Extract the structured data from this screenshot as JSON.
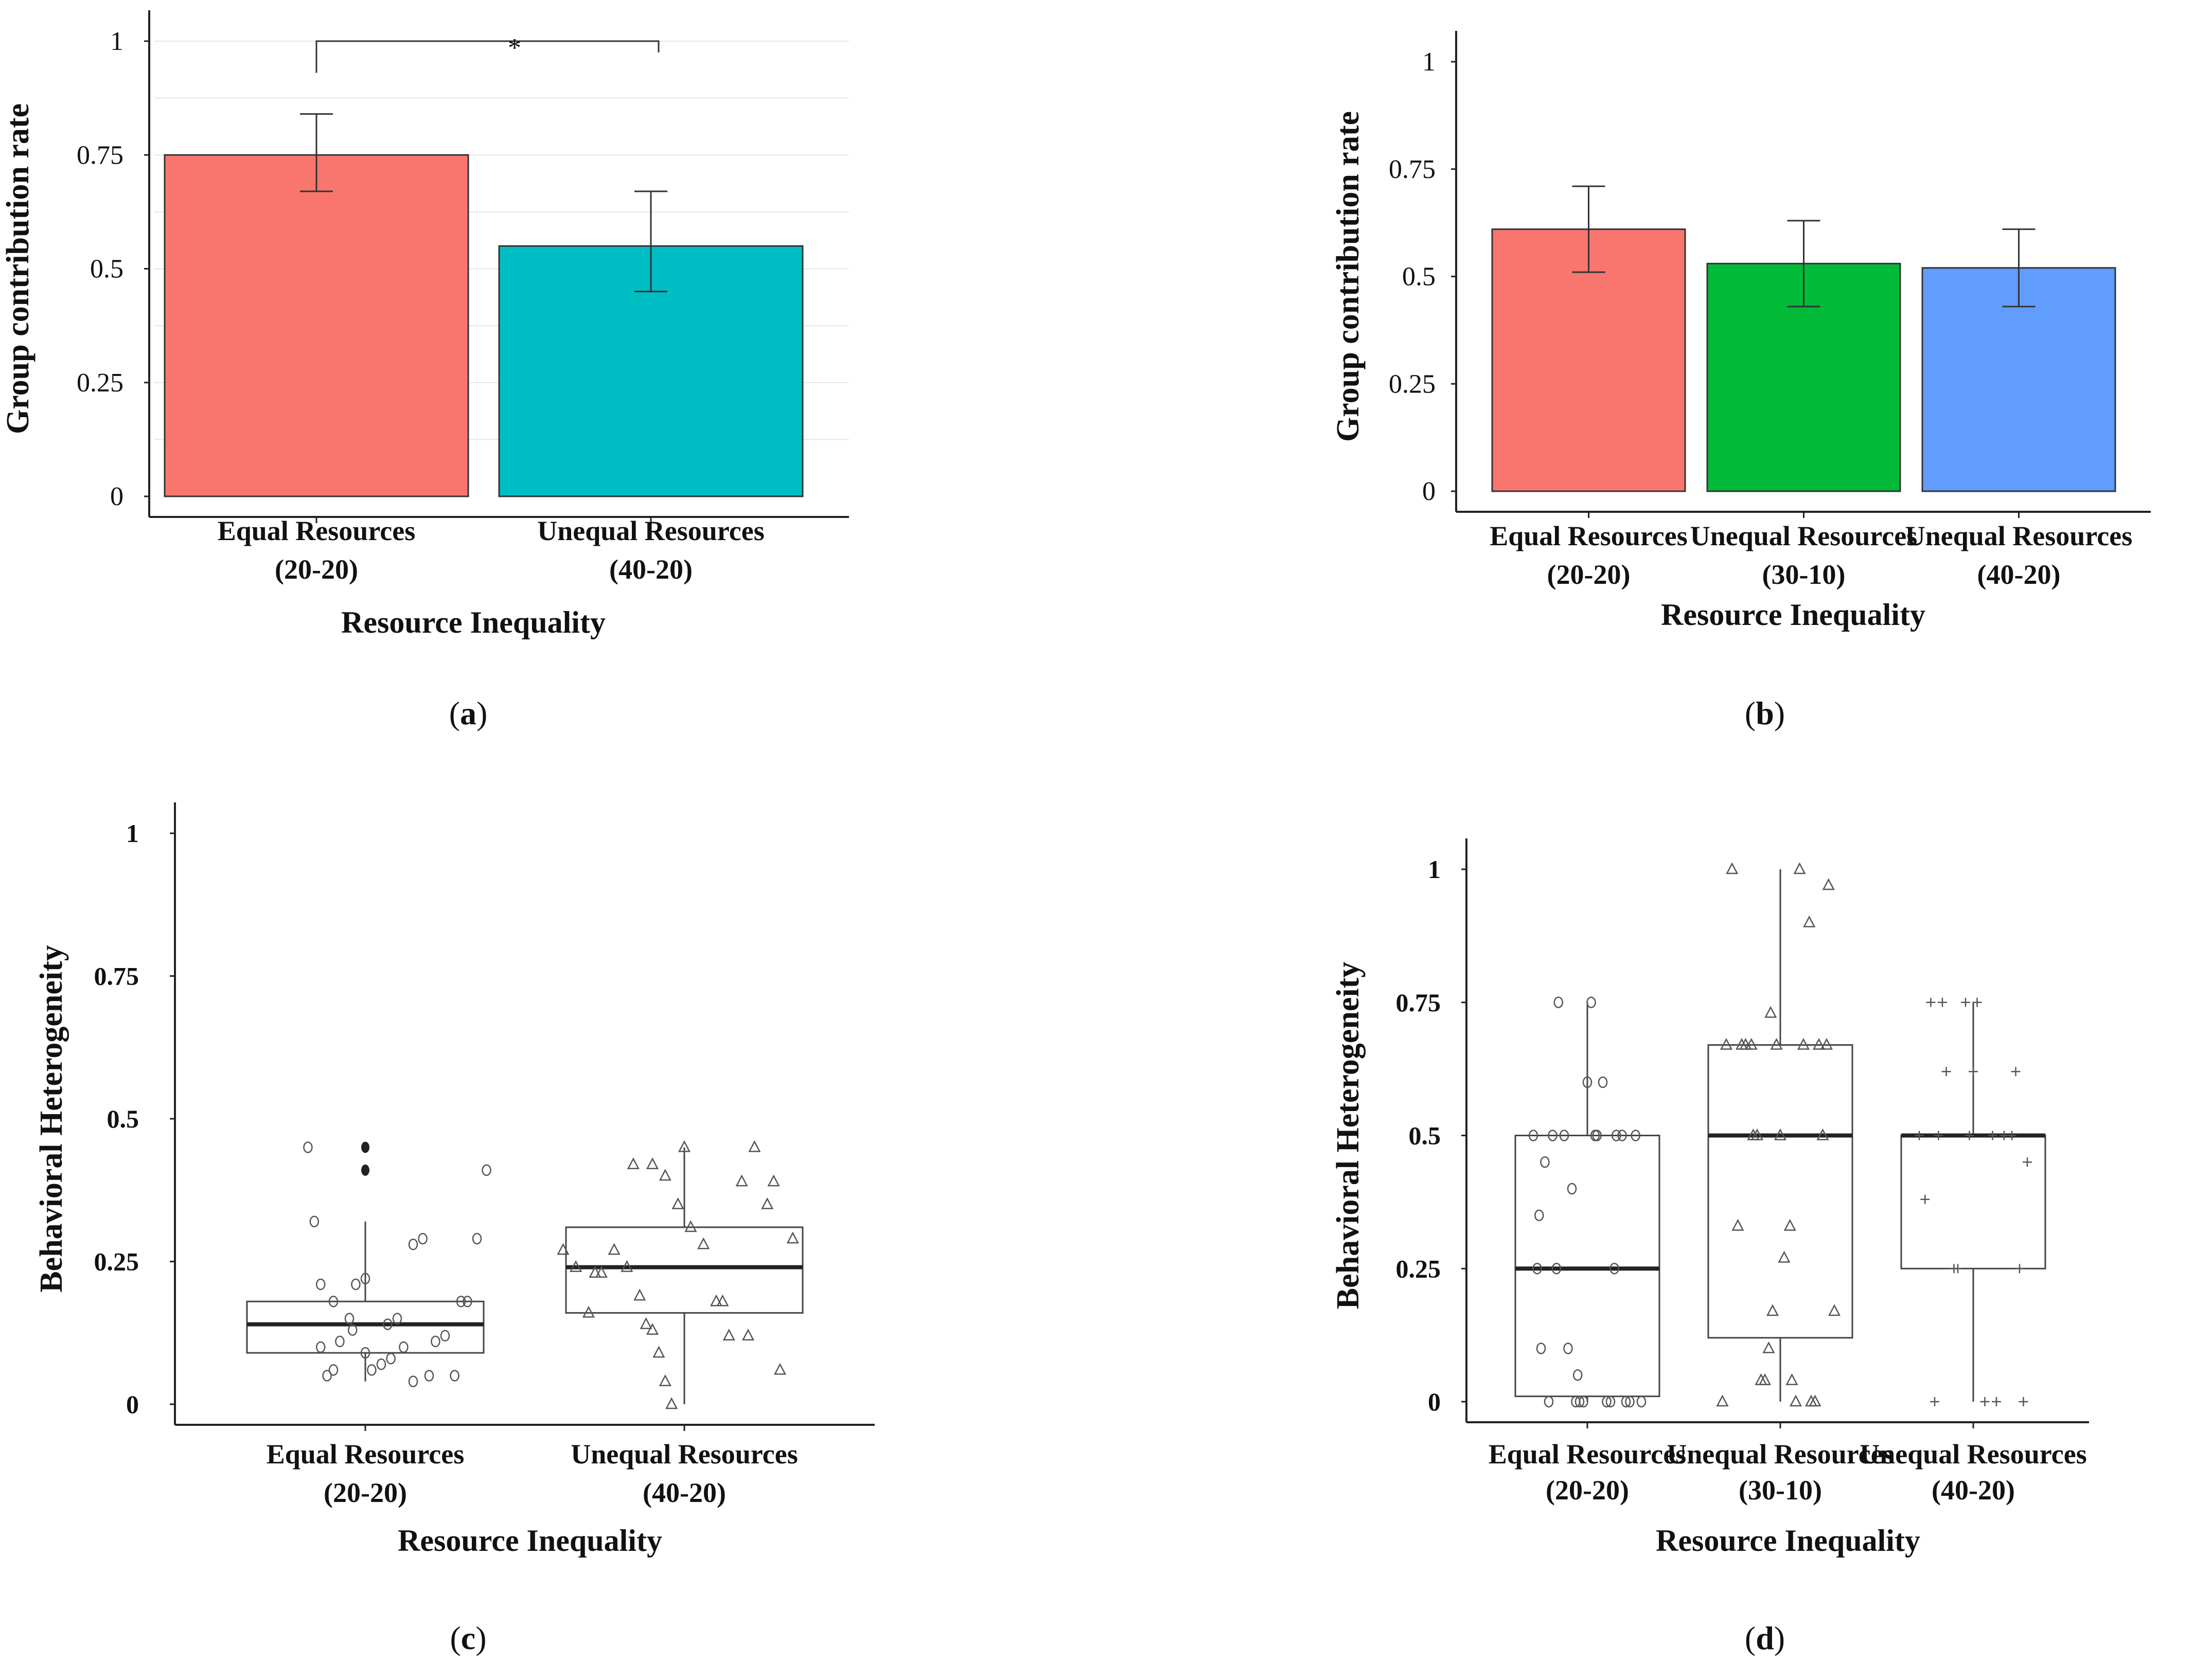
{
  "chart_data": [
    {
      "id": "a",
      "type": "bar",
      "caption": "a",
      "categories": [
        [
          "Equal Resources",
          "(20-20)"
        ],
        [
          "Unequal Resources",
          "(40-20)"
        ]
      ],
      "values": [
        0.75,
        0.55
      ],
      "error_low": [
        0.67,
        0.45
      ],
      "error_high": [
        0.84,
        0.67
      ],
      "colors": [
        "#F8766D",
        "#00BFC4"
      ],
      "ylabel": "Group contribution rate",
      "xlabel": "Resource Inequality",
      "ylim": [
        0,
        1
      ],
      "yticks": [
        "0",
        "0.25",
        "0.5",
        "0.75",
        "1"
      ],
      "significance": "*",
      "grid": true
    },
    {
      "id": "b",
      "type": "bar",
      "caption": "b",
      "categories": [
        [
          "Equal Resources",
          "(20-20)"
        ],
        [
          "Unequal Resources",
          "(30-10)"
        ],
        [
          "Unequal Resources",
          "(40-20)"
        ]
      ],
      "values": [
        0.61,
        0.53,
        0.52
      ],
      "error_low": [
        0.51,
        0.43,
        0.43
      ],
      "error_high": [
        0.71,
        0.63,
        0.61
      ],
      "colors": [
        "#F8766D",
        "#00BA38",
        "#619CFF"
      ],
      "ylabel": "Group contribution rate",
      "xlabel": "Resource Inequality",
      "ylim": [
        0,
        1
      ],
      "yticks": [
        "0",
        "0.25",
        "0.5",
        "0.75",
        "1"
      ]
    },
    {
      "id": "c",
      "type": "box",
      "caption": "c",
      "categories": [
        [
          "Equal Resources",
          "(20-20)"
        ],
        [
          "Unequal Resources",
          "(40-20)"
        ]
      ],
      "ylabel": "Behavioral  Heterogeneity",
      "xlabel": "Resource Inequality",
      "ylim": [
        0,
        1
      ],
      "yticks": [
        "0",
        "0.25",
        "0.5",
        "0.75",
        "1"
      ],
      "boxes": [
        {
          "q1": 0.09,
          "median": 0.14,
          "q3": 0.18,
          "whisker_low": 0.04,
          "whisker_high": 0.32
        },
        {
          "q1": 0.16,
          "median": 0.24,
          "q3": 0.31,
          "whisker_low": 0.0,
          "whisker_high": 0.45
        }
      ],
      "outliers": [
        [
          0.41,
          0.45
        ],
        []
      ],
      "points": [
        {
          "marker": "circle",
          "x": [
            0.82,
            0.86,
            0.9,
            0.95,
            1.0,
            1.05,
            0.88,
            0.92,
            0.97,
            1.07,
            1.12,
            1.15,
            1.2,
            1.25,
            1.3,
            1.35,
            1.38,
            0.84,
            0.96,
            1.08,
            1.18,
            1.28,
            0.9,
            1.0,
            1.1,
            1.22,
            1.32,
            0.86,
            1.02,
            1.15
          ],
          "y": [
            0.45,
            0.21,
            0.18,
            0.15,
            0.09,
            0.07,
            0.05,
            0.11,
            0.21,
            0.14,
            0.1,
            0.04,
            0.05,
            0.12,
            0.18,
            0.29,
            0.41,
            0.32,
            0.13,
            0.08,
            0.29,
            0.05,
            0.06,
            0.22,
            0.15,
            0.11,
            0.18,
            0.1,
            0.06,
            0.28
          ]
        },
        {
          "marker": "triangle",
          "x": [
            1.62,
            1.66,
            1.7,
            1.74,
            1.78,
            1.82,
            1.86,
            1.9,
            1.94,
            1.98,
            2.02,
            2.06,
            2.1,
            2.14,
            2.18,
            2.22,
            2.26,
            2.3,
            2.34,
            1.88,
            1.92,
            1.96,
            2.0,
            1.72,
            1.84,
            1.9,
            2.12,
            2.2,
            2.28,
            1.94
          ],
          "y": [
            0.27,
            0.24,
            0.16,
            0.23,
            0.27,
            0.24,
            0.19,
            0.42,
            0.4,
            0.35,
            0.31,
            0.28,
            0.18,
            0.12,
            0.39,
            0.45,
            0.35,
            0.06,
            0.29,
            0.14,
            0.09,
            0.0,
            0.45,
            0.23,
            0.42,
            0.13,
            0.18,
            0.12,
            0.39,
            0.04
          ]
        }
      ]
    },
    {
      "id": "d",
      "type": "box",
      "caption": "d",
      "categories": [
        [
          "Equal Resources",
          "(20-20)"
        ],
        [
          "Unequal Resources",
          "(30-10)"
        ],
        [
          "Unequal Resources",
          "(40-20)"
        ]
      ],
      "ylabel": "Behavioral  Heterogeneity",
      "xlabel": "Resource Inequality",
      "ylim": [
        0,
        1
      ],
      "yticks": [
        "0",
        "0.25",
        "0.5",
        "0.75",
        "1"
      ],
      "boxes": [
        {
          "q1": 0.01,
          "median": 0.25,
          "q3": 0.5,
          "whisker_low": 0.0,
          "whisker_high": 0.75
        },
        {
          "q1": 0.12,
          "median": 0.5,
          "q3": 0.67,
          "whisker_low": 0.0,
          "whisker_high": 1.0
        },
        {
          "q1": 0.25,
          "median": 0.5,
          "q3": 0.5,
          "whisker_low": 0.0,
          "whisker_high": 0.75
        }
      ],
      "outliers": [
        [],
        [],
        []
      ],
      "points": [
        {
          "marker": "circle",
          "x": [
            0.72,
            0.75,
            0.78,
            0.8,
            0.85,
            0.9,
            0.95,
            1.0,
            1.05,
            1.1,
            1.15,
            1.2,
            1.25,
            1.28,
            0.74,
            0.76,
            0.82,
            0.92,
            0.98,
            1.08,
            1.12,
            0.88,
            0.94,
            1.02,
            1.18,
            1.22,
            0.84,
            0.96,
            1.04,
            1.14
          ],
          "y": [
            0.5,
            0.35,
            0.45,
            0.0,
            0.75,
            0.1,
            0.05,
            0.6,
            0.5,
            0.0,
            0.5,
            0.0,
            0.5,
            0.0,
            0.25,
            0.1,
            0.5,
            0.4,
            0.0,
            0.6,
            0.0,
            0.5,
            0.0,
            0.75,
            0.5,
            0.0,
            0.25,
            0.0,
            0.5,
            0.25
          ]
        },
        {
          "marker": "triangle",
          "x": [
            1.7,
            1.75,
            1.8,
            1.85,
            1.9,
            1.95,
            2.0,
            2.05,
            2.1,
            2.15,
            2.2,
            2.25,
            2.28,
            1.72,
            1.78,
            1.88,
            1.92,
            1.98,
            2.02,
            2.08,
            2.12,
            2.18,
            2.22,
            1.82,
            1.86,
            1.94,
            2.06,
            2.16,
            2.24,
            1.96
          ],
          "y": [
            0.0,
            1.0,
            0.67,
            0.67,
            0.04,
            0.73,
            0.5,
            0.33,
            1.0,
            0.9,
            0.67,
            0.97,
            0.17,
            0.67,
            0.33,
            0.5,
            0.04,
            0.67,
            0.27,
            0.0,
            0.67,
            0.0,
            0.5,
            0.67,
            0.5,
            0.1,
            0.04,
            0.0,
            0.67,
            0.17
          ]
        },
        {
          "marker": "plus",
          "x": [
            2.72,
            2.78,
            2.84,
            2.9,
            2.96,
            3.02,
            3.1,
            3.16,
            3.22,
            3.28,
            2.75,
            2.8,
            2.86,
            2.92,
            2.98,
            3.06,
            3.12,
            3.2,
            3.26,
            3.24,
            2.82,
            3.0
          ],
          "y": [
            0.5,
            0.75,
            0.75,
            0.25,
            0.75,
            0.75,
            0.5,
            0.5,
            0.62,
            0.45,
            0.38,
            0.0,
            0.62,
            0.25,
            0.5,
            0.0,
            0.0,
            0.5,
            0.0,
            0.25,
            0.5,
            0.62
          ]
        }
      ]
    }
  ]
}
